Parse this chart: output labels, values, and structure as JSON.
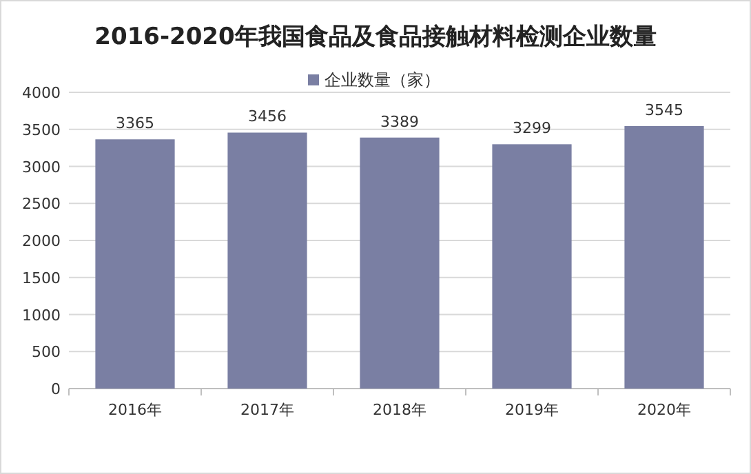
{
  "chart_data": {
    "type": "bar",
    "title": "2016-2020年我国食品及食品接触材料检测企业数量",
    "categories": [
      "2016年",
      "2017年",
      "2018年",
      "2019年",
      "2020年"
    ],
    "series": [
      {
        "name": "企业数量（家）",
        "color": "#7a7fa3",
        "values": [
          3365,
          3456,
          3389,
          3299,
          3545
        ]
      }
    ],
    "ylim": [
      0,
      4000
    ],
    "yticks": [
      0,
      500,
      1000,
      1500,
      2000,
      2500,
      3000,
      3500,
      4000
    ],
    "grid": "y",
    "legend": "top",
    "data_labels": true
  }
}
